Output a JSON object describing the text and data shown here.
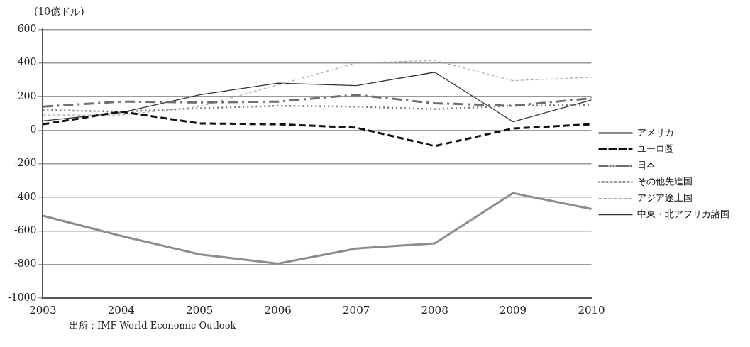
{
  "chart_data": {
    "type": "line",
    "ylabel": "(10億ドル)",
    "categories": [
      "2003",
      "2004",
      "2005",
      "2006",
      "2007",
      "2008",
      "2009",
      "2010"
    ],
    "series": [
      {
        "name": "アメリカ",
        "color": "#8c8c8c",
        "line_style": "solid",
        "values": [
          -510,
          -630,
          -740,
          -795,
          -705,
          -675,
          -375,
          -470
        ]
      },
      {
        "name": "ユーロ圏",
        "color": "#111111",
        "line_style": "dashed",
        "values": [
          35,
          110,
          40,
          35,
          15,
          -95,
          10,
          35
        ]
      },
      {
        "name": "日本",
        "color": "#6e6e6e",
        "line_style": "dashed",
        "values": [
          140,
          170,
          165,
          170,
          210,
          160,
          145,
          190
        ]
      },
      {
        "name": "その他先進国",
        "color": "#7a7a7a",
        "line_style": "dotted",
        "values": [
          120,
          110,
          130,
          145,
          140,
          125,
          145,
          150
        ]
      },
      {
        "name": "アジア途上国",
        "color": "#a8a8a8",
        "line_style": "dashed",
        "values": [
          90,
          90,
          140,
          270,
          400,
          415,
          295,
          315
        ]
      },
      {
        "name": "中東・北アフリカ諸国",
        "color": "#333333",
        "line_style": "solid",
        "values": [
          55,
          105,
          210,
          280,
          265,
          345,
          50,
          180
        ]
      }
    ],
    "ylim": [
      -1000,
      600
    ],
    "yticks": [
      -1000,
      -800,
      -600,
      -400,
      -200,
      0,
      200,
      400,
      600
    ],
    "grid": "y",
    "legend": "right",
    "marker": "none",
    "annotations": [
      "出所：IMF World Economic Outlook"
    ]
  }
}
